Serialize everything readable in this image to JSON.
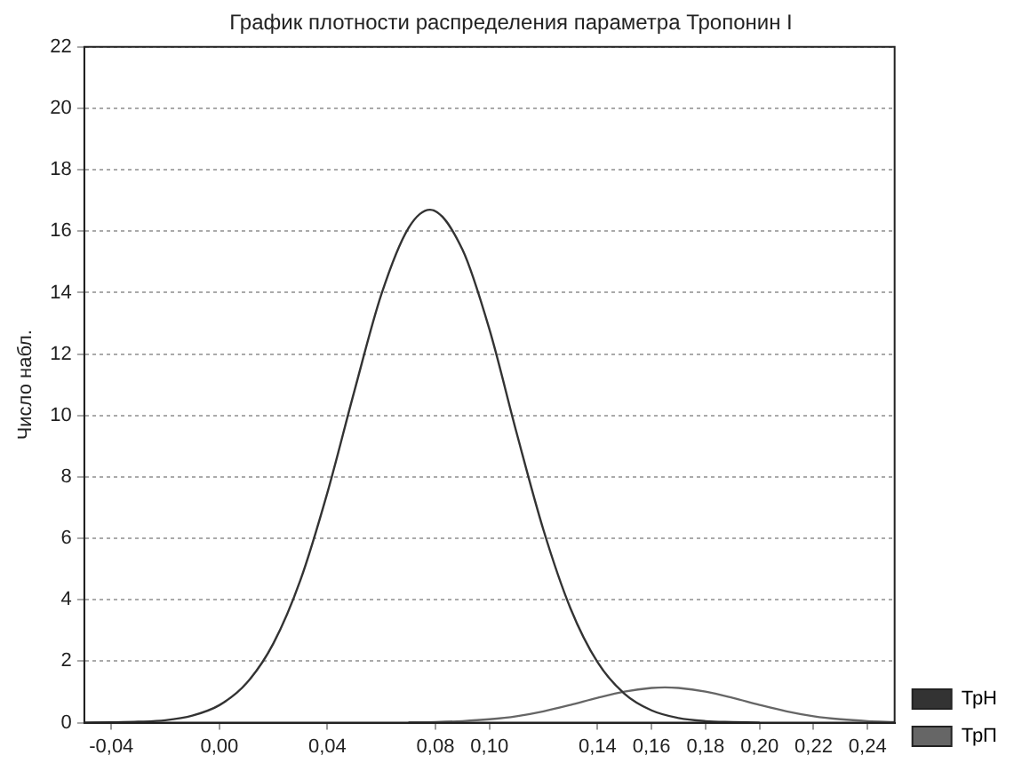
{
  "chart_data": {
    "type": "line",
    "title": "График плотности распределения параметра Тропонин I",
    "ylabel": "Число набл.",
    "series": [
      {
        "name": "ТрН",
        "color": "#333333",
        "x": [
          -0.05,
          -0.04,
          -0.03,
          -0.02,
          -0.01,
          0,
          0.01,
          0.02,
          0.03,
          0.04,
          0.05,
          0.06,
          0.07,
          0.078,
          0.09,
          0.1,
          0.11,
          0.12,
          0.13,
          0.14,
          0.15,
          0.16,
          0.17,
          0.18,
          0.19,
          0.2
        ],
        "values": [
          0,
          0.01,
          0.03,
          0.08,
          0.23,
          0.57,
          1.28,
          2.58,
          4.64,
          7.49,
          10.8,
          13.95,
          16.1,
          16.7,
          15.4,
          12.8,
          9.45,
          6.27,
          3.72,
          1.97,
          0.94,
          0.4,
          0.15,
          0.05,
          0.02,
          0
        ]
      },
      {
        "name": "ТрП",
        "color": "#666666",
        "x": [
          0.07,
          0.08,
          0.09,
          0.1,
          0.11,
          0.12,
          0.13,
          0.14,
          0.15,
          0.16,
          0.165,
          0.17,
          0.18,
          0.19,
          0.2,
          0.21,
          0.22,
          0.23,
          0.24,
          0.25
        ],
        "values": [
          0.01,
          0.02,
          0.05,
          0.11,
          0.21,
          0.37,
          0.58,
          0.81,
          1.01,
          1.13,
          1.15,
          1.13,
          1.01,
          0.81,
          0.58,
          0.37,
          0.21,
          0.11,
          0.05,
          0.02
        ]
      }
    ],
    "xlim": [
      -0.05,
      0.25
    ],
    "xticks": [
      {
        "value": -0.04,
        "label": "-0,04"
      },
      {
        "value": 0,
        "label": "0,00"
      },
      {
        "value": 0.04,
        "label": "0,04"
      },
      {
        "value": 0.08,
        "label": "0,08"
      },
      {
        "value": 0.1,
        "label": "0,10"
      },
      {
        "value": 0.14,
        "label": "0,14"
      },
      {
        "value": 0.16,
        "label": "0,16"
      },
      {
        "value": 0.18,
        "label": "0,18"
      },
      {
        "value": 0.2,
        "label": "0,20"
      },
      {
        "value": 0.22,
        "label": "0,22"
      },
      {
        "value": 0.24,
        "label": "0,24"
      }
    ],
    "ylim": [
      0,
      22
    ],
    "yticks": [
      0,
      2,
      4,
      6,
      8,
      10,
      12,
      14,
      16,
      18,
      20,
      22
    ],
    "grid": "y",
    "legend": "bottom right",
    "marker": "none",
    "line_style": "solid"
  }
}
